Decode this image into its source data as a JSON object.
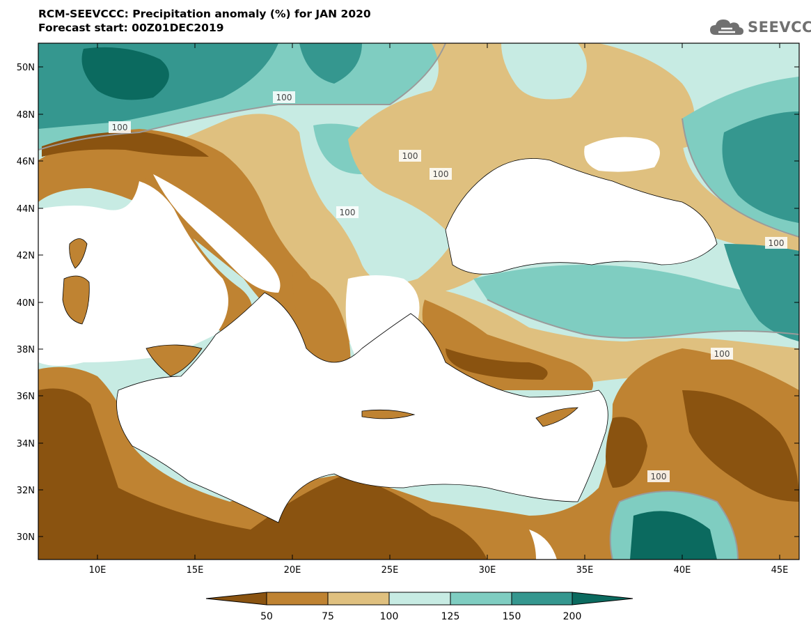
{
  "header": {
    "title": "RCM-SEEVCCC: Precipitation anomaly (%) for JAN 2020",
    "subtitle": "Forecast start: 00Z01DEC2019"
  },
  "logo": {
    "text": "SEEVCCC",
    "icon": "cloud-logo-icon"
  },
  "map": {
    "lat_labels": [
      "50N",
      "48N",
      "46N",
      "44N",
      "42N",
      "40N",
      "38N",
      "36N",
      "34N",
      "32N",
      "30N"
    ],
    "lon_labels": [
      "10E",
      "15E",
      "20E",
      "25E",
      "30E",
      "35E",
      "40E",
      "45E"
    ],
    "contour_labels": [
      "100",
      "100",
      "100",
      "100",
      "100",
      "100",
      "100",
      "100"
    ],
    "sea_color": "#ffffff"
  },
  "colorbar": {
    "ticks": [
      "50",
      "75",
      "100",
      "125",
      "150",
      "200"
    ],
    "colors": [
      "#8a5310",
      "#bf8332",
      "#dfc07f",
      "#c7ebe3",
      "#7fcdc1",
      "#35978f",
      "#0b6a5f"
    ]
  }
}
